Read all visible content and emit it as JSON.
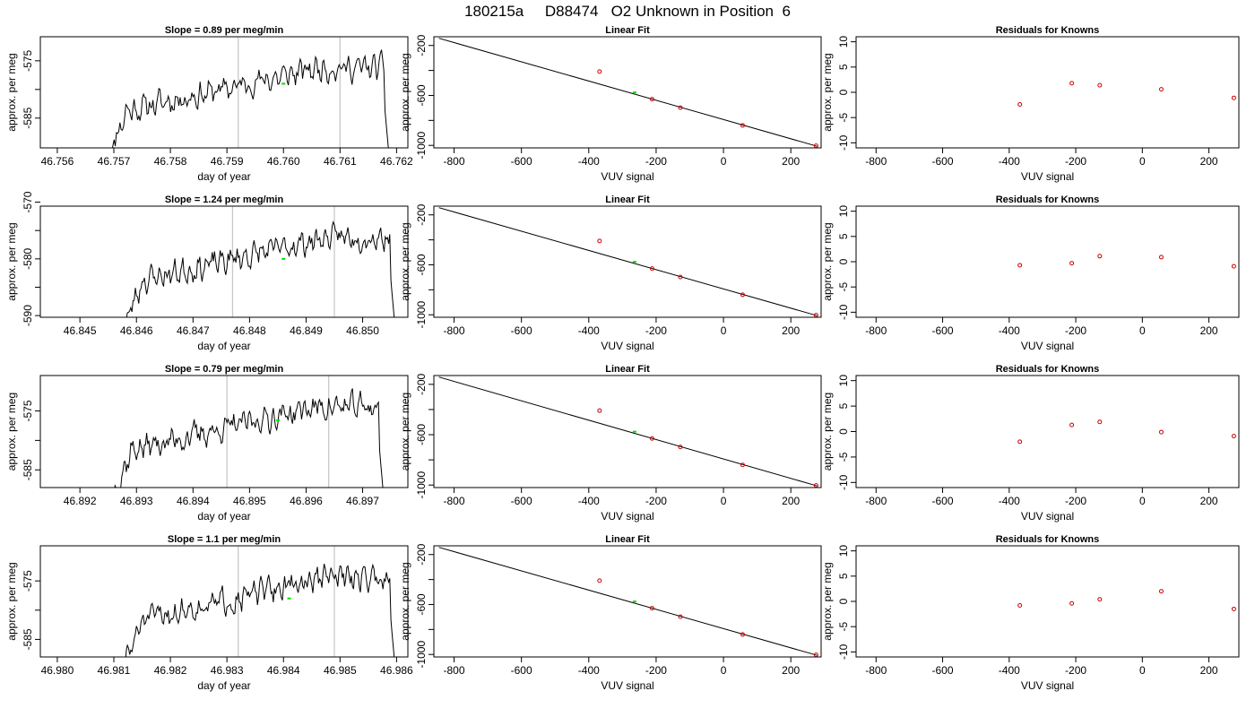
{
  "figure_title": "180215a     D88474   O2 Unknown in Position  6",
  "chart_data": [
    {
      "type": "line",
      "title": "Slope =  0.89  per meg/min",
      "xlabel": "day of year",
      "ylabel": "approx. per meg",
      "x_range": [
        46.7557,
        46.7622
      ],
      "y_range": [
        -590.2,
        -570.8
      ],
      "x_ticks": [
        46.756,
        46.757,
        46.758,
        46.759,
        46.76,
        46.761,
        46.762
      ],
      "x_tick_labels": [
        "46.756",
        "46.757",
        "46.758",
        "46.759",
        "46.760",
        "46.761",
        "46.762"
      ],
      "y_ticks": [
        -585,
        -580,
        -575
      ],
      "y_tick_labels": [
        "-585",
        "",
        "-575"
      ],
      "vlines": [
        46.7592,
        46.761
      ],
      "marker": {
        "x": 46.76,
        "y": -579.0
      },
      "series_start": 46.7569,
      "series_end": 46.7619,
      "series_shape": "trace1"
    },
    {
      "type": "scatter",
      "title": "Linear Fit",
      "xlabel": "VUV signal",
      "ylabel": "approx. per meg",
      "x_range": [
        -860,
        290
      ],
      "y_range": [
        -1020,
        -130
      ],
      "x_ticks": [
        -800,
        -600,
        -400,
        -200,
        0,
        200
      ],
      "x_tick_labels": [
        "-800",
        "-600",
        "-400",
        "-200",
        "0",
        "200"
      ],
      "y_ticks": [
        -1000,
        -800,
        -600,
        -400,
        -200
      ],
      "y_tick_labels": [
        "-1000",
        "",
        "-600",
        "",
        "-200"
      ],
      "line": {
        "x0": -845,
        "y0": -142,
        "x1": 278,
        "y1": -1007
      },
      "points_x": [
        -368,
        -212,
        -128,
        57,
        275
      ],
      "points_y": [
        -409,
        -630,
        -698,
        -840,
        -1003
      ],
      "highlight": {
        "x": -264,
        "y": -576
      }
    },
    {
      "type": "scatter",
      "title": "Residuals for Knowns",
      "xlabel": "VUV signal",
      "ylabel": "approx. per meg",
      "x_range": [
        -860,
        290
      ],
      "y_range": [
        -11,
        11
      ],
      "x_ticks": [
        -800,
        -600,
        -400,
        -200,
        0,
        200
      ],
      "x_tick_labels": [
        "-800",
        "-600",
        "-400",
        "-200",
        "0",
        "200"
      ],
      "y_ticks": [
        -10,
        -5,
        0,
        5,
        10
      ],
      "y_tick_labels": [
        "-10",
        "-5",
        "0",
        "5",
        "10"
      ],
      "points_x": [
        -368,
        -212,
        -128,
        57,
        275
      ],
      "points_y": [
        -2.4,
        1.8,
        1.4,
        0.6,
        -1.1
      ]
    },
    {
      "type": "line",
      "title": "Slope =  1.24  per meg/min",
      "xlabel": "day of year",
      "ylabel": "approx. per meg",
      "x_range": [
        46.8443,
        46.8508
      ],
      "y_range": [
        -590.3,
        -570.7
      ],
      "x_ticks": [
        46.845,
        46.846,
        46.847,
        46.848,
        46.849,
        46.85
      ],
      "x_tick_labels": [
        "46.845",
        "46.846",
        "46.847",
        "46.848",
        "46.849",
        "46.850"
      ],
      "y_ticks": [
        -590,
        -585,
        -580,
        -575,
        -570
      ],
      "y_tick_labels": [
        "-590",
        "",
        "-580",
        "",
        "-570"
      ],
      "vlines": [
        46.8477,
        46.8495
      ],
      "marker": {
        "x": 46.8486,
        "y": -580.0
      },
      "series_start": 46.8458,
      "series_end": 46.8506,
      "series_shape": "trace2"
    },
    {
      "type": "scatter",
      "title": "Linear Fit",
      "xlabel": "VUV signal",
      "ylabel": "approx. per meg",
      "x_range": [
        -860,
        290
      ],
      "y_range": [
        -1020,
        -130
      ],
      "x_ticks": [
        -800,
        -600,
        -400,
        -200,
        0,
        200
      ],
      "x_tick_labels": [
        "-800",
        "-600",
        "-400",
        "-200",
        "0",
        "200"
      ],
      "y_ticks": [
        -1000,
        -800,
        -600,
        -400,
        -200
      ],
      "y_tick_labels": [
        "-1000",
        "",
        "-600",
        "",
        "-200"
      ],
      "line": {
        "x0": -845,
        "y0": -142,
        "x1": 278,
        "y1": -1007
      },
      "points_x": [
        -368,
        -212,
        -128,
        57,
        275
      ],
      "points_y": [
        -409,
        -630,
        -698,
        -840,
        -1003
      ],
      "highlight": {
        "x": -264,
        "y": -576
      }
    },
    {
      "type": "scatter",
      "title": "Residuals for Knowns",
      "xlabel": "VUV signal",
      "ylabel": "approx. per meg",
      "x_range": [
        -860,
        290
      ],
      "y_range": [
        -11,
        11
      ],
      "x_ticks": [
        -800,
        -600,
        -400,
        -200,
        0,
        200
      ],
      "x_tick_labels": [
        "-800",
        "-600",
        "-400",
        "-200",
        "0",
        "200"
      ],
      "y_ticks": [
        -10,
        -5,
        0,
        5,
        10
      ],
      "y_tick_labels": [
        "-10",
        "-5",
        "0",
        "5",
        "10"
      ],
      "points_x": [
        -368,
        -212,
        -128,
        57,
        275
      ],
      "points_y": [
        -0.7,
        -0.3,
        1.1,
        0.9,
        -0.9
      ]
    },
    {
      "type": "line",
      "title": "Slope =  0.79  per meg/min",
      "xlabel": "day of year",
      "ylabel": "approx. per meg",
      "x_range": [
        46.8913,
        46.8978
      ],
      "y_range": [
        -588.0,
        -569.0
      ],
      "x_ticks": [
        46.892,
        46.893,
        46.894,
        46.895,
        46.896,
        46.897
      ],
      "x_tick_labels": [
        "46.892",
        "46.893",
        "46.894",
        "46.895",
        "46.896",
        "46.897"
      ],
      "y_ticks": [
        -585,
        -580,
        -575
      ],
      "y_tick_labels": [
        "-585",
        "",
        "-575"
      ],
      "vlines": [
        46.8946,
        46.8964
      ],
      "marker": {
        "x": 46.8955,
        "y": -576.6
      },
      "series_start": 46.8926,
      "series_end": 46.8974,
      "series_shape": "trace3"
    },
    {
      "type": "scatter",
      "title": "Linear Fit",
      "xlabel": "VUV signal",
      "ylabel": "approx. per meg",
      "x_range": [
        -860,
        290
      ],
      "y_range": [
        -1020,
        -130
      ],
      "x_ticks": [
        -800,
        -600,
        -400,
        -200,
        0,
        200
      ],
      "x_tick_labels": [
        "-800",
        "-600",
        "-400",
        "-200",
        "0",
        "200"
      ],
      "y_ticks": [
        -1000,
        -800,
        -600,
        -400,
        -200
      ],
      "y_tick_labels": [
        "-1000",
        "",
        "-600",
        "",
        "-200"
      ],
      "line": {
        "x0": -845,
        "y0": -142,
        "x1": 278,
        "y1": -1007
      },
      "points_x": [
        -368,
        -212,
        -128,
        57,
        275
      ],
      "points_y": [
        -409,
        -630,
        -698,
        -840,
        -1003
      ],
      "highlight": {
        "x": -264,
        "y": -576
      }
    },
    {
      "type": "scatter",
      "title": "Residuals for Knowns",
      "xlabel": "VUV signal",
      "ylabel": "approx. per meg",
      "x_range": [
        -860,
        290
      ],
      "y_range": [
        -11,
        11
      ],
      "x_ticks": [
        -800,
        -600,
        -400,
        -200,
        0,
        200
      ],
      "x_tick_labels": [
        "-800",
        "-600",
        "-400",
        "-200",
        "0",
        "200"
      ],
      "y_ticks": [
        -10,
        -5,
        0,
        5,
        10
      ],
      "y_tick_labels": [
        "-10",
        "-5",
        "0",
        "5",
        "10"
      ],
      "points_x": [
        -368,
        -212,
        -128,
        57,
        275
      ],
      "points_y": [
        -2.0,
        1.3,
        1.9,
        -0.1,
        -0.9
      ]
    },
    {
      "type": "line",
      "title": "Slope =  1.1  per meg/min",
      "xlabel": "day of year",
      "ylabel": "approx. per meg",
      "x_range": [
        46.9797,
        46.9862
      ],
      "y_range": [
        -588.0,
        -569.0
      ],
      "x_ticks": [
        46.98,
        46.981,
        46.982,
        46.983,
        46.984,
        46.985,
        46.986
      ],
      "x_tick_labels": [
        "46.980",
        "46.981",
        "46.982",
        "46.983",
        "46.984",
        "46.985",
        "46.986"
      ],
      "y_ticks": [
        -585,
        -580,
        -575
      ],
      "y_tick_labels": [
        "-585",
        "",
        "-575"
      ],
      "vlines": [
        46.9832,
        46.9849
      ],
      "marker": {
        "x": 46.9841,
        "y": -578.0
      },
      "series_start": 46.9812,
      "series_end": 46.986,
      "series_shape": "trace4"
    },
    {
      "type": "scatter",
      "title": "Linear Fit",
      "xlabel": "VUV signal",
      "ylabel": "approx. per meg",
      "x_range": [
        -860,
        290
      ],
      "y_range": [
        -1020,
        -130
      ],
      "x_ticks": [
        -800,
        -600,
        -400,
        -200,
        0,
        200
      ],
      "x_tick_labels": [
        "-800",
        "-600",
        "-400",
        "-200",
        "0",
        "200"
      ],
      "y_ticks": [
        -1000,
        -800,
        -600,
        -400,
        -200
      ],
      "y_tick_labels": [
        "-1000",
        "",
        "-600",
        "",
        "-200"
      ],
      "line": {
        "x0": -845,
        "y0": -142,
        "x1": 278,
        "y1": -1007
      },
      "points_x": [
        -368,
        -212,
        -128,
        57,
        275
      ],
      "points_y": [
        -409,
        -630,
        -698,
        -840,
        -1003
      ],
      "highlight": {
        "x": -264,
        "y": -576
      }
    },
    {
      "type": "scatter",
      "title": "Residuals for Knowns",
      "xlabel": "VUV signal",
      "ylabel": "approx. per meg",
      "x_range": [
        -860,
        290
      ],
      "y_range": [
        -11,
        11
      ],
      "x_ticks": [
        -800,
        -600,
        -400,
        -200,
        0,
        200
      ],
      "x_tick_labels": [
        "-800",
        "-600",
        "-400",
        "-200",
        "0",
        "200"
      ],
      "y_ticks": [
        -10,
        -5,
        0,
        5,
        10
      ],
      "y_tick_labels": [
        "-10",
        "-5",
        "0",
        "5",
        "10"
      ],
      "points_x": [
        -368,
        -212,
        -128,
        57,
        275
      ],
      "points_y": [
        -0.8,
        -0.4,
        0.4,
        2.0,
        -1.5
      ]
    }
  ],
  "colors": {
    "axis": "#000000",
    "trace": "#000000",
    "vline": "#c8c8c8",
    "marker": "#00dd00",
    "point": "#cc0000",
    "fit_line": "#000000"
  }
}
